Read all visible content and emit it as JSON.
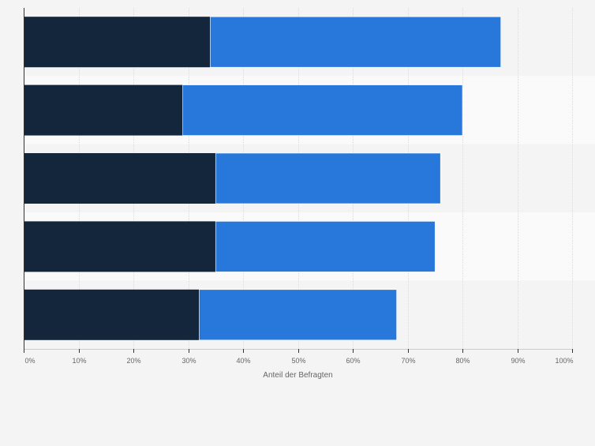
{
  "chart_data": {
    "type": "bar",
    "orientation": "horizontal",
    "stacked": true,
    "categories": [
      "",
      "",
      "",
      "",
      ""
    ],
    "series": [
      {
        "values": [
          34,
          29,
          35,
          35,
          32
        ],
        "color": "#13263b"
      },
      {
        "values": [
          53,
          51,
          41,
          40,
          36
        ],
        "color": "#2878dc"
      }
    ],
    "xlim": [
      0,
      100
    ],
    "xticks": [
      "0%",
      "10%",
      "20%",
      "30%",
      "40%",
      "50%",
      "60%",
      "70%",
      "80%",
      "90%",
      "100%"
    ],
    "xlabel": "Anteil der Befragten",
    "ylabel": "",
    "grid": true,
    "band_colors": [
      "#f4f4f4",
      "#fafafa"
    ]
  }
}
